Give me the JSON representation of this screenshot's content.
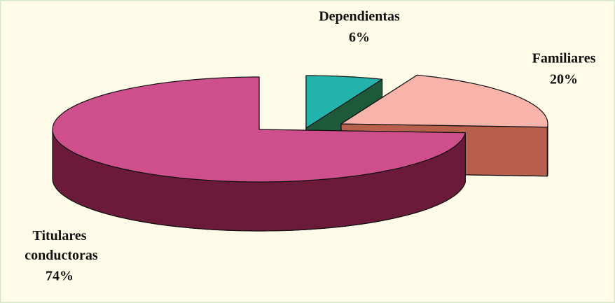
{
  "chart_data": {
    "type": "pie",
    "categories": [
      "Dependientas",
      "Familiares",
      "Titulares conductoras"
    ],
    "values": [
      6,
      20,
      74
    ],
    "value_labels": [
      "6%",
      "20%",
      "74%"
    ],
    "colors": [
      "#22b3ad",
      "#f8b3ab",
      "#cf4f8c"
    ],
    "side_colors": [
      "#1d5a3c",
      "#b8604c",
      "#6b1a3a"
    ],
    "legend": false
  }
}
